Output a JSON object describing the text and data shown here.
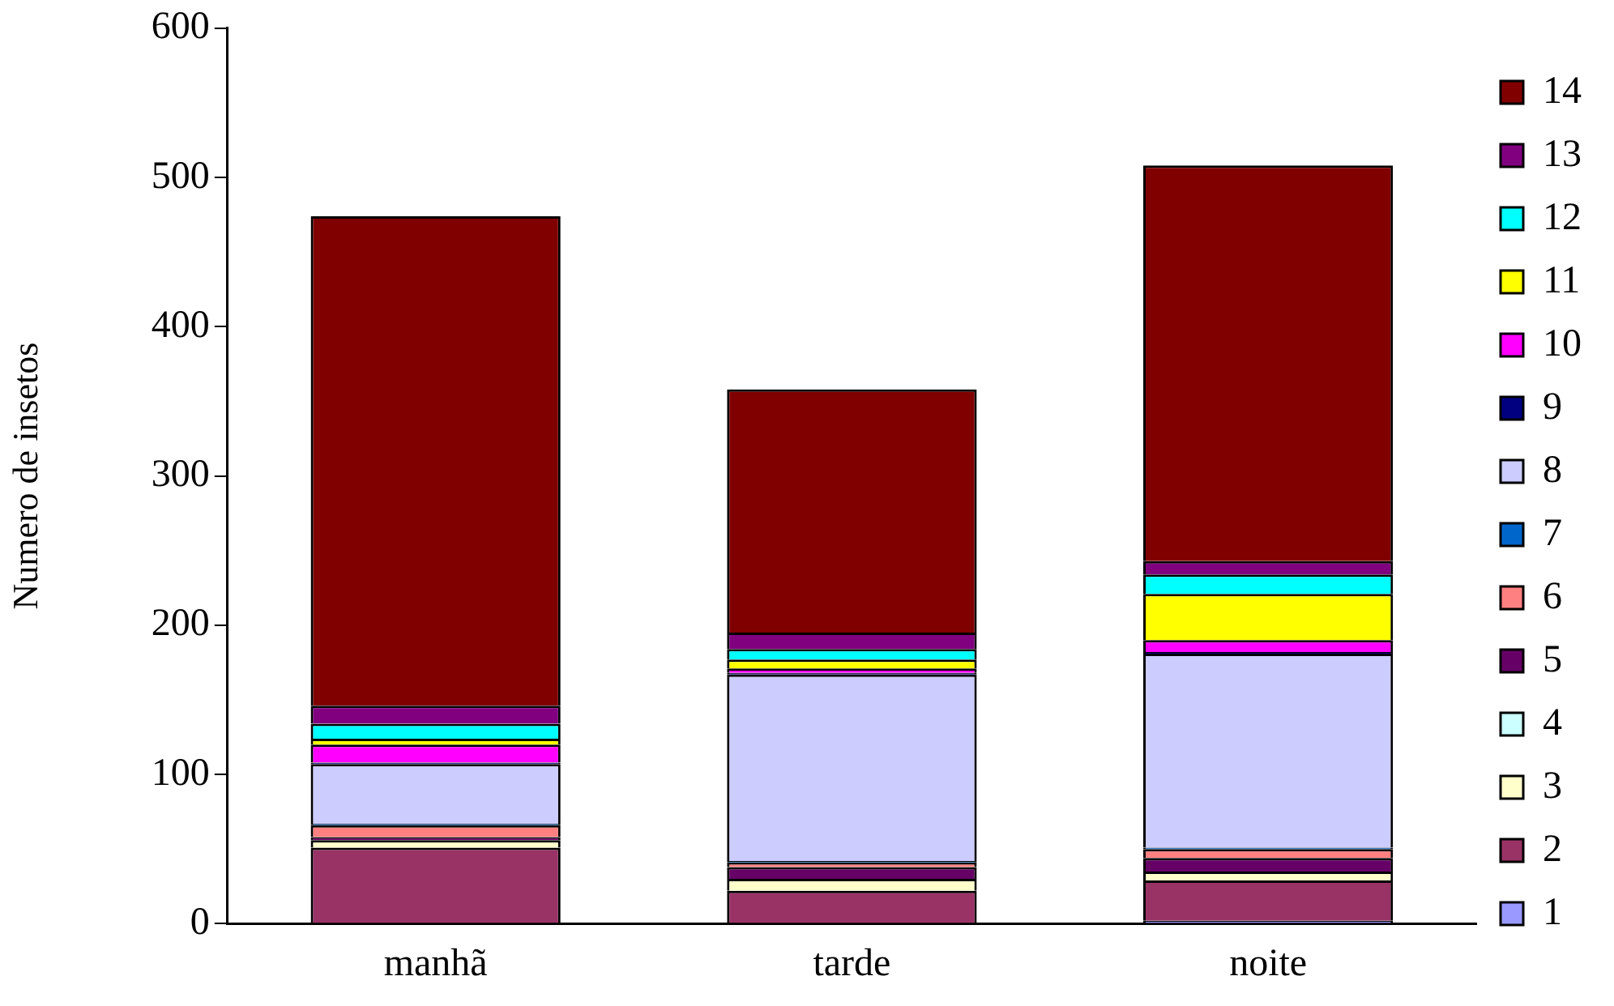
{
  "chart_data": {
    "type": "bar",
    "ylabel": "Numero de insetos",
    "categories": [
      "manhã",
      "tarde",
      "noite"
    ],
    "stacked": true,
    "ylim": [
      0,
      600
    ],
    "yticks": [
      0,
      100,
      200,
      300,
      400,
      500,
      600
    ],
    "grid": false,
    "legend": "right",
    "series": [
      {
        "name": "1",
        "color": "#9999ff",
        "values": [
          null,
          null,
          2
        ]
      },
      {
        "name": "2",
        "color": "#993366",
        "values": [
          51,
          22,
          27
        ]
      },
      {
        "name": "3",
        "color": "#ffffcc",
        "values": [
          5,
          8,
          6
        ]
      },
      {
        "name": "4",
        "color": "#ccffff",
        "values": [
          null,
          null,
          null
        ]
      },
      {
        "name": "5",
        "color": "#660066",
        "values": [
          2,
          8,
          9
        ]
      },
      {
        "name": "6",
        "color": "#ff8080",
        "values": [
          8,
          3,
          6
        ]
      },
      {
        "name": "7",
        "color": "#0066cc",
        "values": [
          1,
          1,
          1
        ]
      },
      {
        "name": "8",
        "color": "#ccccff",
        "values": [
          40,
          125,
          130
        ]
      },
      {
        "name": "9",
        "color": "#000080",
        "values": [
          1,
          1,
          1
        ]
      },
      {
        "name": "10",
        "color": "#ff00ff",
        "values": [
          12,
          3,
          8
        ]
      },
      {
        "name": "11",
        "color": "#ffff00",
        "values": [
          4,
          6,
          31
        ]
      },
      {
        "name": "12",
        "color": "#00ffff",
        "values": [
          10,
          7,
          13
        ]
      },
      {
        "name": "13",
        "color": "#800080",
        "values": [
          12,
          11,
          9
        ]
      },
      {
        "name": "14",
        "color": "#800000",
        "values": [
          328,
          163,
          265
        ]
      }
    ]
  }
}
